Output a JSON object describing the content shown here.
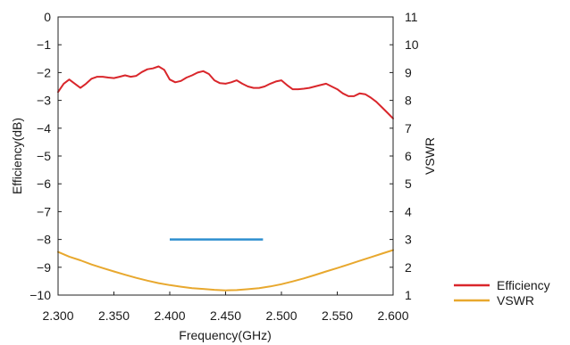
{
  "chart_data": {
    "type": "line",
    "title": "",
    "xlabel": "Frequency(GHz)",
    "ylabel": "Efficiency(dB)",
    "y2label": "VSWR",
    "xlim": [
      2.3,
      2.6
    ],
    "ylim": [
      -10,
      0
    ],
    "y2lim": [
      1,
      11
    ],
    "x_ticks": [
      "2.300",
      "2.350",
      "2.400",
      "2.450",
      "2.500",
      "2.550",
      "2.600"
    ],
    "y_ticks": [
      "0",
      "−1",
      "−2",
      "−3",
      "−4",
      "−5",
      "−6",
      "−7",
      "−8",
      "−9",
      "−10"
    ],
    "y2_ticks": [
      "11",
      "10",
      "9",
      "8",
      "7",
      "6",
      "5",
      "4",
      "3",
      "2",
      "1"
    ],
    "grid": false,
    "legend_position": "bottom-right",
    "series": [
      {
        "name": "Efficiency",
        "axis": "left",
        "color": "#d9262b",
        "x": [
          2.3,
          2.305,
          2.31,
          2.315,
          2.32,
          2.325,
          2.33,
          2.335,
          2.34,
          2.345,
          2.35,
          2.355,
          2.36,
          2.365,
          2.37,
          2.375,
          2.38,
          2.385,
          2.39,
          2.395,
          2.4,
          2.405,
          2.41,
          2.415,
          2.42,
          2.425,
          2.43,
          2.435,
          2.44,
          2.445,
          2.45,
          2.455,
          2.46,
          2.465,
          2.47,
          2.475,
          2.48,
          2.485,
          2.49,
          2.495,
          2.5,
          2.505,
          2.51,
          2.515,
          2.52,
          2.525,
          2.53,
          2.535,
          2.54,
          2.545,
          2.55,
          2.555,
          2.56,
          2.565,
          2.57,
          2.575,
          2.58,
          2.585,
          2.59,
          2.595,
          2.6
        ],
        "values": [
          -2.7,
          -2.4,
          -2.25,
          -2.4,
          -2.55,
          -2.4,
          -2.22,
          -2.15,
          -2.15,
          -2.18,
          -2.2,
          -2.15,
          -2.1,
          -2.15,
          -2.12,
          -1.98,
          -1.88,
          -1.85,
          -1.78,
          -1.9,
          -2.25,
          -2.35,
          -2.3,
          -2.18,
          -2.1,
          -2.0,
          -1.95,
          -2.05,
          -2.28,
          -2.38,
          -2.4,
          -2.35,
          -2.28,
          -2.4,
          -2.5,
          -2.55,
          -2.55,
          -2.5,
          -2.4,
          -2.32,
          -2.28,
          -2.45,
          -2.6,
          -2.6,
          -2.58,
          -2.55,
          -2.5,
          -2.45,
          -2.4,
          -2.5,
          -2.6,
          -2.75,
          -2.85,
          -2.85,
          -2.75,
          -2.78,
          -2.9,
          -3.05,
          -3.25,
          -3.45,
          -3.65
        ]
      },
      {
        "name": "VSWR",
        "axis": "right",
        "color": "#e8a82e",
        "x": [
          2.3,
          2.31,
          2.32,
          2.33,
          2.34,
          2.35,
          2.36,
          2.37,
          2.38,
          2.39,
          2.4,
          2.41,
          2.42,
          2.43,
          2.44,
          2.45,
          2.46,
          2.47,
          2.48,
          2.49,
          2.5,
          2.51,
          2.52,
          2.53,
          2.54,
          2.55,
          2.56,
          2.57,
          2.58,
          2.59,
          2.6
        ],
        "values": [
          2.55,
          2.38,
          2.25,
          2.1,
          1.97,
          1.85,
          1.73,
          1.62,
          1.52,
          1.43,
          1.36,
          1.3,
          1.25,
          1.22,
          1.19,
          1.17,
          1.18,
          1.21,
          1.25,
          1.31,
          1.39,
          1.49,
          1.6,
          1.72,
          1.85,
          1.97,
          2.1,
          2.23,
          2.36,
          2.49,
          2.62
        ]
      }
    ],
    "annotations": [
      {
        "type": "band",
        "axis": "left",
        "color": "#2e8fcf",
        "x": [
          2.4,
          2.4835
        ],
        "y": -8
      }
    ]
  }
}
